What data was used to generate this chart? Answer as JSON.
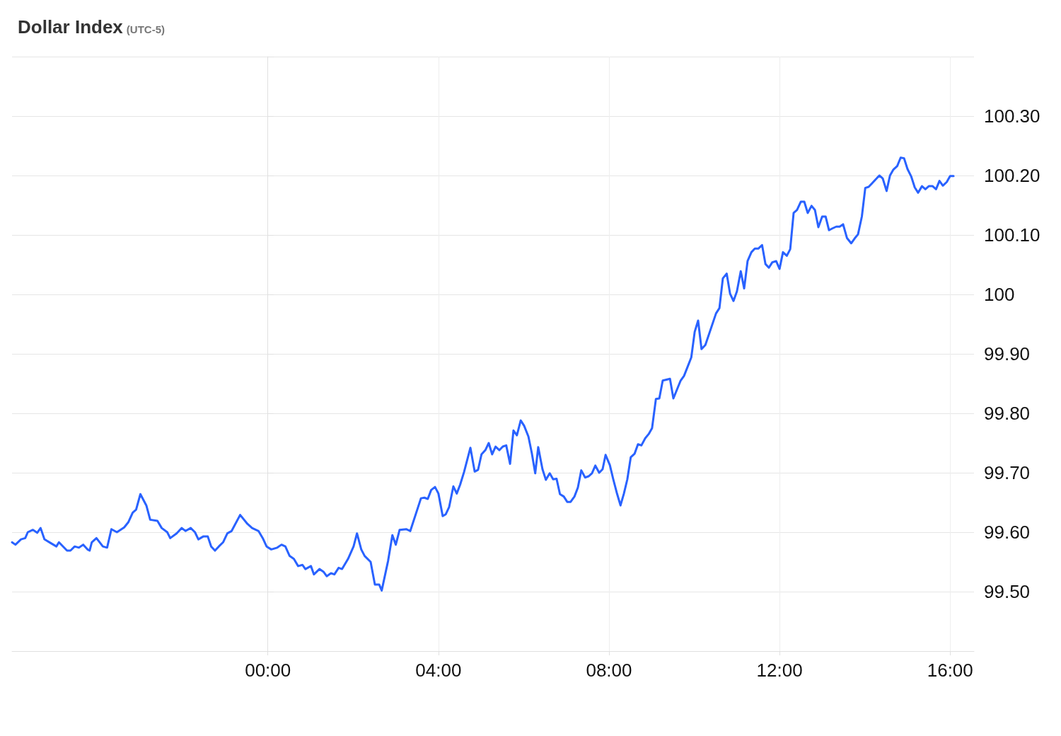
{
  "chart_data": {
    "type": "line",
    "title": "Dollar Index",
    "subtitle": "(UTC-5)",
    "marker": "none",
    "line_style": "solid",
    "grid": true,
    "xlim": [
      -6,
      16.56
    ],
    "xticks": [
      {
        "value": 0,
        "label": "00:00"
      },
      {
        "value": 4,
        "label": "04:00"
      },
      {
        "value": 8,
        "label": "08:00"
      },
      {
        "value": 12,
        "label": "12:00"
      },
      {
        "value": 16,
        "label": "16:00"
      }
    ],
    "ylim": [
      99.4,
      100.4
    ],
    "yticks": [
      {
        "value": 99.5,
        "label": "99.50"
      },
      {
        "value": 99.6,
        "label": "99.60"
      },
      {
        "value": 99.7,
        "label": "99.70"
      },
      {
        "value": 99.8,
        "label": "99.80"
      },
      {
        "value": 99.9,
        "label": "99.90"
      },
      100,
      {
        "value": 100.1,
        "label": "100.10"
      },
      {
        "value": 100.2,
        "label": "100.20"
      },
      {
        "value": 100.3,
        "label": "100.30"
      }
    ],
    "x": [
      -6.0,
      -5.92,
      -5.79,
      -5.69,
      -5.63,
      -5.51,
      -5.41,
      -5.33,
      -5.24,
      -5.1,
      -4.96,
      -4.9,
      -4.71,
      -4.63,
      -4.53,
      -4.43,
      -4.33,
      -4.23,
      -4.18,
      -4.13,
      -4.02,
      -3.87,
      -3.77,
      -3.67,
      -3.54,
      -3.37,
      -3.27,
      -3.17,
      -3.09,
      -2.99,
      -2.85,
      -2.76,
      -2.59,
      -2.49,
      -2.36,
      -2.29,
      -2.14,
      -2.02,
      -1.93,
      -1.81,
      -1.71,
      -1.63,
      -1.51,
      -1.41,
      -1.33,
      -1.24,
      -1.15,
      -1.05,
      -0.95,
      -0.85,
      -0.65,
      -0.48,
      -0.37,
      -0.22,
      -0.12,
      -0.03,
      0.08,
      0.22,
      0.32,
      0.41,
      0.51,
      0.61,
      0.71,
      0.81,
      0.88,
      1.01,
      1.08,
      1.21,
      1.31,
      1.38,
      1.48,
      1.56,
      1.66,
      1.74,
      1.88,
      2.01,
      2.09,
      2.19,
      2.27,
      2.41,
      2.51,
      2.61,
      2.67,
      2.82,
      2.92,
      3.0,
      3.09,
      3.25,
      3.34,
      3.59,
      3.67,
      3.75,
      3.83,
      3.92,
      4.0,
      4.1,
      4.17,
      4.25,
      4.35,
      4.43,
      4.51,
      4.6,
      4.75,
      4.85,
      4.93,
      5.01,
      5.1,
      5.18,
      5.26,
      5.34,
      5.43,
      5.51,
      5.59,
      5.68,
      5.76,
      5.84,
      5.93,
      6.01,
      6.11,
      6.19,
      6.27,
      6.34,
      6.44,
      6.52,
      6.61,
      6.69,
      6.77,
      6.85,
      6.94,
      7.02,
      7.1,
      7.19,
      7.27,
      7.35,
      7.44,
      7.52,
      7.6,
      7.68,
      7.77,
      7.85,
      7.92,
      8.02,
      8.1,
      8.18,
      8.27,
      8.35,
      8.43,
      8.51,
      8.6,
      8.68,
      8.76,
      8.85,
      8.93,
      9.01,
      9.1,
      9.18,
      9.26,
      9.43,
      9.51,
      9.68,
      9.76,
      9.93,
      10.01,
      10.09,
      10.17,
      10.26,
      10.51,
      10.59,
      10.67,
      10.76,
      10.84,
      10.92,
      11.0,
      11.09,
      11.17,
      11.25,
      11.34,
      11.42,
      11.5,
      11.59,
      11.67,
      11.75,
      11.83,
      11.92,
      12.0,
      12.08,
      12.17,
      12.25,
      12.33,
      12.41,
      12.5,
      12.58,
      12.66,
      12.75,
      12.83,
      12.91,
      13.0,
      13.08,
      13.16,
      13.24,
      13.33,
      13.41,
      13.49,
      13.58,
      13.68,
      13.76,
      13.84,
      13.93,
      14.01,
      14.09,
      14.17,
      14.34,
      14.42,
      14.51,
      14.59,
      14.67,
      14.76,
      14.84,
      14.92,
      15.0,
      15.09,
      15.17,
      15.25,
      15.34,
      15.42,
      15.5,
      15.59,
      15.67,
      15.75,
      15.83,
      15.92,
      16.0,
      16.08
    ],
    "series": [
      {
        "color": "#2962ff",
        "values": [
          99.583,
          99.579,
          99.588,
          99.59,
          99.6,
          99.604,
          99.599,
          99.607,
          99.588,
          99.582,
          99.576,
          99.583,
          99.569,
          99.569,
          99.576,
          99.574,
          99.579,
          99.571,
          99.569,
          99.583,
          99.59,
          99.576,
          99.574,
          99.605,
          99.6,
          99.608,
          99.617,
          99.633,
          99.638,
          99.664,
          99.645,
          99.621,
          99.619,
          99.607,
          99.6,
          99.59,
          99.598,
          99.607,
          99.602,
          99.607,
          99.6,
          99.588,
          99.593,
          99.593,
          99.576,
          99.569,
          99.576,
          99.583,
          99.598,
          99.602,
          99.629,
          99.614,
          99.607,
          99.602,
          99.59,
          99.576,
          99.571,
          99.574,
          99.579,
          99.576,
          99.56,
          99.555,
          99.543,
          99.545,
          99.538,
          99.543,
          99.529,
          99.538,
          99.533,
          99.526,
          99.531,
          99.529,
          99.54,
          99.538,
          99.555,
          99.576,
          99.598,
          99.571,
          99.56,
          99.55,
          99.512,
          99.512,
          99.502,
          99.552,
          99.595,
          99.579,
          99.604,
          99.605,
          99.602,
          99.657,
          99.658,
          99.656,
          99.671,
          99.676,
          99.665,
          99.627,
          99.63,
          99.642,
          99.677,
          99.665,
          99.68,
          99.701,
          99.742,
          99.702,
          99.705,
          99.731,
          99.738,
          99.75,
          99.731,
          99.744,
          99.738,
          99.744,
          99.746,
          99.715,
          99.771,
          99.763,
          99.788,
          99.779,
          99.761,
          99.733,
          99.699,
          99.743,
          99.706,
          99.688,
          99.699,
          99.689,
          99.69,
          99.664,
          99.66,
          99.651,
          99.651,
          99.66,
          99.675,
          99.704,
          99.692,
          99.694,
          99.699,
          99.712,
          99.7,
          99.706,
          99.73,
          99.713,
          99.689,
          99.667,
          99.645,
          99.665,
          99.689,
          99.726,
          99.732,
          99.748,
          99.746,
          99.758,
          99.765,
          99.775,
          99.824,
          99.825,
          99.855,
          99.858,
          99.825,
          99.855,
          99.863,
          99.894,
          99.937,
          99.956,
          99.908,
          99.915,
          99.968,
          99.977,
          100.027,
          100.035,
          100.001,
          99.989,
          100.005,
          100.039,
          100.01,
          100.056,
          100.071,
          100.077,
          100.077,
          100.083,
          100.051,
          100.045,
          100.054,
          100.056,
          100.043,
          100.071,
          100.065,
          100.076,
          100.137,
          100.142,
          100.156,
          100.156,
          100.137,
          100.149,
          100.142,
          100.113,
          100.131,
          100.131,
          100.108,
          100.111,
          100.114,
          100.114,
          100.118,
          100.095,
          100.086,
          100.094,
          100.101,
          100.131,
          100.179,
          100.181,
          100.187,
          100.2,
          100.195,
          100.174,
          100.2,
          100.21,
          100.216,
          100.23,
          100.229,
          100.211,
          100.198,
          100.18,
          100.171,
          100.182,
          100.177,
          100.182,
          100.182,
          100.177,
          100.191,
          100.183,
          100.189,
          100.199,
          100.199
        ]
      }
    ]
  }
}
